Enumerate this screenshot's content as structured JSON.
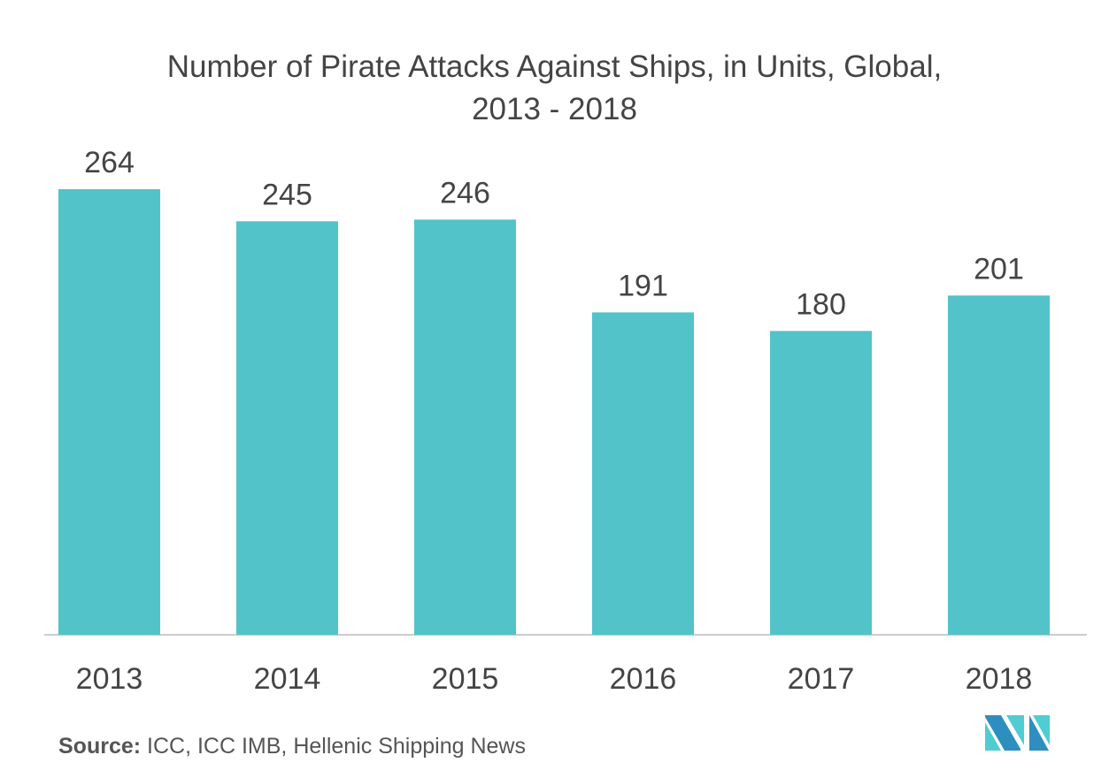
{
  "chart_data": {
    "type": "bar",
    "title_line1": "Number of Pirate Attacks Against Ships, in Units, Global,",
    "title_line2": "2013 - 2018",
    "categories": [
      "2013",
      "2014",
      "2015",
      "2016",
      "2017",
      "2018"
    ],
    "values": [
      264,
      245,
      246,
      191,
      180,
      201
    ],
    "xlabel": "",
    "ylabel": "",
    "ylim": [
      0,
      264
    ],
    "grid": false,
    "bar_color": "#52c3c9"
  },
  "source": {
    "label": "Source:",
    "text": " ICC, ICC IMB, Hellenic Shipping News"
  },
  "logo": {
    "colors": [
      "#2e8ec0",
      "#4fcdd3"
    ]
  }
}
